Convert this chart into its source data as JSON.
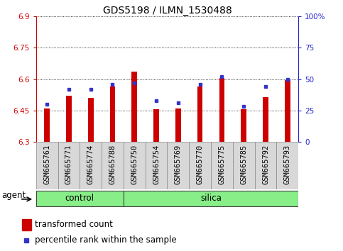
{
  "title": "GDS5198 / ILMN_1530488",
  "samples": [
    "GSM665761",
    "GSM665771",
    "GSM665774",
    "GSM665788",
    "GSM665750",
    "GSM665754",
    "GSM665769",
    "GSM665770",
    "GSM665775",
    "GSM665785",
    "GSM665792",
    "GSM665793"
  ],
  "transformed_count": [
    6.46,
    6.52,
    6.51,
    6.565,
    6.635,
    6.455,
    6.46,
    6.565,
    6.605,
    6.455,
    6.515,
    6.595
  ],
  "percentile_rank": [
    30,
    42,
    42,
    46,
    47,
    33,
    31,
    46,
    52,
    28,
    44,
    50
  ],
  "y_min": 6.3,
  "y_max": 6.9,
  "y_ticks": [
    6.3,
    6.45,
    6.6,
    6.75,
    6.9
  ],
  "y2_ticks": [
    0,
    25,
    50,
    75,
    100
  ],
  "y2_labels": [
    "0",
    "25",
    "50",
    "75",
    "100%"
  ],
  "ctrl_count": 4,
  "sil_count": 8,
  "bar_color": "#cc0000",
  "dot_color": "#3333cc",
  "green_color": "#88ee88",
  "left_axis_color": "#cc0000",
  "right_axis_color": "#2222cc",
  "agent_label": "agent",
  "control_label": "control",
  "silica_label": "silica",
  "legend_bar_label": "transformed count",
  "legend_dot_label": "percentile rank within the sample",
  "title_fontsize": 10,
  "axis_fontsize": 8,
  "tick_fontsize": 7.5,
  "label_fontsize": 8.5
}
